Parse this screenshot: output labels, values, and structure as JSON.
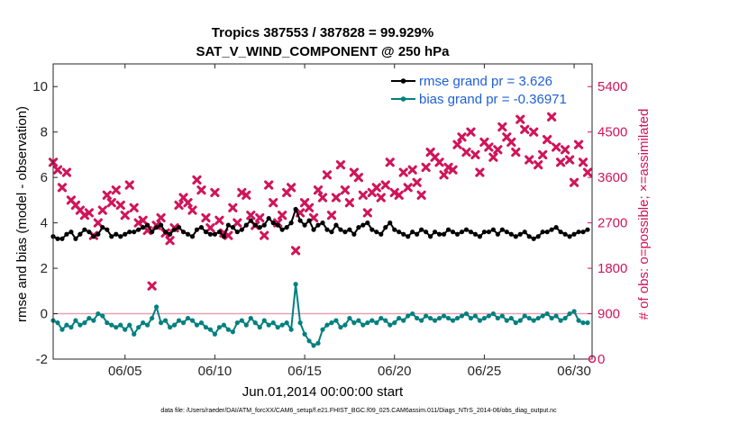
{
  "chart_data": {
    "type": "line",
    "title_line1": "Tropics 387553 / 387828 = 99.929%",
    "title_line2": "SAT_V_WIND_COMPONENT @ 250 hPa",
    "xlabel": "Jun.01,2014 00:00:00 start",
    "ylabel_left": "rmse and bias (model - observation)",
    "ylabel_right": "# of obs: o=possible; ×=assimilated",
    "xlim": [
      1,
      31
    ],
    "ylim_left": [
      -2,
      11
    ],
    "ylim_right": [
      0,
      5850
    ],
    "x_ticks": [
      5,
      10,
      15,
      20,
      25,
      30
    ],
    "x_tick_labels": [
      "06/05",
      "06/10",
      "06/15",
      "06/20",
      "06/25",
      "06/30"
    ],
    "y_ticks_left": [
      -2,
      0,
      2,
      4,
      6,
      8,
      10
    ],
    "y_tick_labels_left": [
      "-2",
      "0",
      "2",
      "4",
      "6",
      "8",
      "10"
    ],
    "y_ticks_right": [
      0,
      900,
      1800,
      2700,
      3600,
      4500,
      5400
    ],
    "y_tick_labels_right": [
      "0",
      "900",
      "1800",
      "2700",
      "3600",
      "4500",
      "5400"
    ],
    "legend": {
      "position": "top-right",
      "entries": [
        "rmse grand pr = 3.626",
        "bias grand pr = -0.36971"
      ]
    },
    "colors": {
      "rmse": "#000000",
      "bias": "#00807f",
      "obs": "#d0145a",
      "zero_line": "#e8a3b6"
    },
    "series": [
      {
        "name": "rmse",
        "axis": "left",
        "x": [
          1.0,
          1.25,
          1.5,
          1.75,
          2.0,
          2.25,
          2.5,
          2.75,
          3.0,
          3.25,
          3.5,
          3.75,
          4.0,
          4.25,
          4.5,
          4.75,
          5.0,
          5.25,
          5.5,
          5.75,
          6.0,
          6.25,
          6.5,
          6.75,
          7.0,
          7.25,
          7.5,
          7.75,
          8.0,
          8.25,
          8.5,
          8.75,
          9.0,
          9.25,
          9.5,
          9.75,
          10.0,
          10.25,
          10.5,
          10.75,
          11.0,
          11.25,
          11.5,
          11.75,
          12.0,
          12.25,
          12.5,
          12.75,
          13.0,
          13.25,
          13.5,
          13.75,
          14.0,
          14.25,
          14.5,
          14.75,
          15.0,
          15.25,
          15.5,
          15.75,
          16.0,
          16.25,
          16.5,
          16.75,
          17.0,
          17.25,
          17.5,
          17.75,
          18.0,
          18.25,
          18.5,
          18.75,
          19.0,
          19.25,
          19.5,
          19.75,
          20.0,
          20.25,
          20.5,
          20.75,
          21.0,
          21.25,
          21.5,
          21.75,
          22.0,
          22.25,
          22.5,
          22.75,
          23.0,
          23.25,
          23.5,
          23.75,
          24.0,
          24.25,
          24.5,
          24.75,
          25.0,
          25.25,
          25.5,
          25.75,
          26.0,
          26.25,
          26.5,
          26.75,
          27.0,
          27.25,
          27.5,
          27.75,
          28.0,
          28.25,
          28.5,
          28.75,
          29.0,
          29.25,
          29.5,
          29.75,
          30.0,
          30.25,
          30.5,
          30.75
        ],
        "values": [
          3.4,
          3.3,
          3.3,
          3.5,
          3.6,
          3.3,
          3.5,
          3.7,
          3.6,
          3.4,
          3.5,
          3.8,
          3.7,
          3.4,
          3.5,
          3.4,
          3.5,
          3.6,
          3.6,
          3.7,
          3.8,
          3.9,
          3.6,
          3.8,
          3.9,
          3.6,
          3.5,
          3.7,
          3.8,
          3.6,
          3.5,
          3.4,
          3.7,
          3.8,
          3.6,
          3.5,
          3.5,
          3.6,
          3.4,
          3.9,
          3.8,
          3.6,
          3.7,
          3.9,
          4.1,
          3.9,
          3.8,
          3.9,
          4.2,
          4.0,
          3.9,
          3.7,
          3.8,
          4.0,
          4.6,
          4.1,
          3.9,
          4.1,
          3.7,
          3.9,
          4.0,
          3.7,
          3.6,
          3.9,
          3.7,
          3.6,
          3.7,
          3.5,
          3.8,
          3.9,
          4.0,
          3.7,
          3.6,
          3.5,
          3.8,
          4.0,
          3.7,
          3.6,
          3.5,
          3.4,
          3.6,
          3.5,
          3.7,
          3.6,
          3.4,
          3.6,
          3.5,
          3.5,
          3.7,
          3.6,
          3.5,
          3.6,
          3.7,
          3.6,
          3.5,
          3.4,
          3.6,
          3.6,
          3.7,
          3.5,
          3.7,
          3.6,
          3.5,
          3.4,
          3.5,
          3.6,
          3.4,
          3.3,
          3.4,
          3.6,
          3.6,
          3.7,
          3.8,
          3.6,
          3.5,
          3.4,
          3.5,
          3.6,
          3.6,
          3.7
        ]
      },
      {
        "name": "bias",
        "axis": "left",
        "x": [
          1.0,
          1.25,
          1.5,
          1.75,
          2.0,
          2.25,
          2.5,
          2.75,
          3.0,
          3.25,
          3.5,
          3.75,
          4.0,
          4.25,
          4.5,
          4.75,
          5.0,
          5.25,
          5.5,
          5.75,
          6.0,
          6.25,
          6.5,
          6.75,
          7.0,
          7.25,
          7.5,
          7.75,
          8.0,
          8.25,
          8.5,
          8.75,
          9.0,
          9.25,
          9.5,
          9.75,
          10.0,
          10.25,
          10.5,
          10.75,
          11.0,
          11.25,
          11.5,
          11.75,
          12.0,
          12.25,
          12.5,
          12.75,
          13.0,
          13.25,
          13.5,
          13.75,
          14.0,
          14.25,
          14.5,
          14.75,
          15.0,
          15.25,
          15.5,
          15.75,
          16.0,
          16.25,
          16.5,
          16.75,
          17.0,
          17.25,
          17.5,
          17.75,
          18.0,
          18.25,
          18.5,
          18.75,
          19.0,
          19.25,
          19.5,
          19.75,
          20.0,
          20.25,
          20.5,
          20.75,
          21.0,
          21.25,
          21.5,
          21.75,
          22.0,
          22.25,
          22.5,
          22.75,
          23.0,
          23.25,
          23.5,
          23.75,
          24.0,
          24.25,
          24.5,
          24.75,
          25.0,
          25.25,
          25.5,
          25.75,
          26.0,
          26.25,
          26.5,
          26.75,
          27.0,
          27.25,
          27.5,
          27.75,
          28.0,
          28.25,
          28.5,
          28.75,
          29.0,
          29.25,
          29.5,
          29.75,
          30.0,
          30.25,
          30.5,
          30.75
        ],
        "values": [
          -0.3,
          -0.4,
          -0.7,
          -0.5,
          -0.6,
          -0.3,
          -0.5,
          -0.4,
          -0.2,
          -0.3,
          0.0,
          -0.1,
          -0.4,
          -0.5,
          -0.6,
          -0.5,
          -0.7,
          -0.5,
          -0.9,
          -0.6,
          -0.4,
          -0.5,
          -0.2,
          0.3,
          -0.4,
          -0.3,
          -0.6,
          -0.5,
          -0.3,
          -0.4,
          -0.2,
          -0.3,
          -0.5,
          -0.4,
          -0.6,
          -0.7,
          -0.9,
          -0.6,
          -0.5,
          -0.7,
          -0.8,
          -0.4,
          -0.3,
          -0.5,
          -0.2,
          -0.4,
          -0.6,
          -0.3,
          -0.5,
          -0.4,
          -0.6,
          -0.5,
          -0.4,
          -0.7,
          1.3,
          -0.4,
          -0.9,
          -1.2,
          -1.4,
          -1.3,
          -0.7,
          -0.5,
          -0.4,
          -0.3,
          -0.6,
          -0.5,
          -0.2,
          -0.4,
          -0.3,
          -0.5,
          -0.4,
          -0.3,
          -0.4,
          -0.2,
          -0.3,
          -0.5,
          -0.4,
          -0.2,
          -0.3,
          -0.1,
          0.0,
          -0.2,
          -0.3,
          -0.1,
          -0.2,
          -0.3,
          -0.2,
          -0.1,
          -0.2,
          -0.3,
          -0.2,
          -0.1,
          0.0,
          -0.2,
          -0.1,
          -0.3,
          -0.2,
          -0.1,
          0.0,
          -0.2,
          -0.1,
          -0.3,
          -0.2,
          -0.4,
          -0.3,
          -0.1,
          -0.2,
          -0.3,
          -0.2,
          -0.1,
          0.0,
          -0.2,
          -0.1,
          -0.3,
          -0.2,
          0.0,
          0.1,
          -0.3,
          -0.4,
          -0.4
        ]
      },
      {
        "name": "obs assimilated",
        "axis": "right",
        "marker": "x",
        "x": [
          1.0,
          1.25,
          1.5,
          1.75,
          2.0,
          2.25,
          2.5,
          2.75,
          3.0,
          3.25,
          3.5,
          3.75,
          4.0,
          4.25,
          4.5,
          4.75,
          5.0,
          5.25,
          5.5,
          5.75,
          6.0,
          6.25,
          6.5,
          6.75,
          7.0,
          7.25,
          7.5,
          7.75,
          8.0,
          8.25,
          8.5,
          8.75,
          9.0,
          9.25,
          9.5,
          9.75,
          10.0,
          10.25,
          10.5,
          10.75,
          11.0,
          11.25,
          11.5,
          11.75,
          12.0,
          12.25,
          12.5,
          12.75,
          13.0,
          13.25,
          13.5,
          13.75,
          14.0,
          14.25,
          14.5,
          14.75,
          15.0,
          15.25,
          15.5,
          15.75,
          16.0,
          16.25,
          16.5,
          16.75,
          17.0,
          17.25,
          17.5,
          17.75,
          18.0,
          18.25,
          18.5,
          18.75,
          19.0,
          19.25,
          19.5,
          19.75,
          20.0,
          20.25,
          20.5,
          20.75,
          21.0,
          21.25,
          21.5,
          21.75,
          22.0,
          22.25,
          22.5,
          22.75,
          23.0,
          23.25,
          23.5,
          23.75,
          24.0,
          24.25,
          24.5,
          24.75,
          25.0,
          25.25,
          25.5,
          25.75,
          26.0,
          26.25,
          26.5,
          26.75,
          27.0,
          27.25,
          27.5,
          27.75,
          28.0,
          28.25,
          28.5,
          28.75,
          29.0,
          29.25,
          29.5,
          29.75,
          30.0,
          30.25,
          30.5,
          30.75
        ],
        "values": [
          3900,
          3750,
          3400,
          3700,
          3150,
          3050,
          2950,
          2850,
          2900,
          2450,
          2700,
          2950,
          3250,
          3100,
          3350,
          3050,
          2850,
          3450,
          3000,
          2700,
          2750,
          2550,
          1450,
          2650,
          2800,
          2500,
          2350,
          2600,
          3050,
          3200,
          3100,
          2950,
          3550,
          3350,
          2800,
          2600,
          3300,
          2750,
          2500,
          2450,
          3000,
          2700,
          3300,
          3250,
          2850,
          2650,
          2800,
          2450,
          3450,
          3100,
          2700,
          2850,
          3300,
          3400,
          2150,
          2900,
          3100,
          3000,
          2800,
          3350,
          3200,
          3650,
          2850,
          3200,
          3850,
          3350,
          3100,
          3700,
          3600,
          3250,
          2900,
          3300,
          3400,
          3200,
          3450,
          3900,
          3300,
          3250,
          3700,
          3400,
          3750,
          3500,
          3250,
          3800,
          4100,
          4000,
          3900,
          3650,
          3800,
          3750,
          4250,
          4400,
          4100,
          4500,
          4050,
          3700,
          4300,
          4200,
          4000,
          4150,
          4600,
          4400,
          4300,
          4100,
          4750,
          4550,
          3950,
          4500,
          3850,
          4050,
          4350,
          4800,
          4200,
          3900,
          4150,
          3950,
          3500,
          4250,
          3900,
          3700
        ]
      }
    ]
  },
  "footer": "data file: /Users/raeder/DAI/ATM_forcXX/CAM6_setup/f.e21.FHIST_BGC.f09_025.CAM6assim.011/Diags_NTrS_2014-06/obs_diag_output.nc"
}
